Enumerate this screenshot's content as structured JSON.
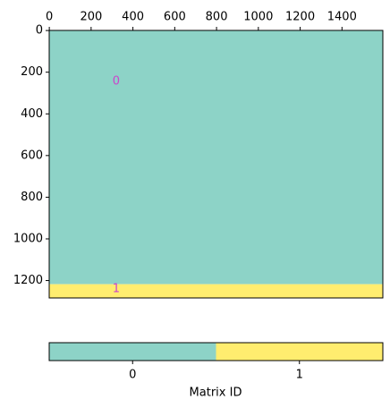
{
  "chart_data": {
    "type": "matrix",
    "xlim": [
      -0.5,
      1595.5
    ],
    "ylim": [
      1283.5,
      -0.5
    ],
    "xticks": [
      0,
      200,
      400,
      600,
      800,
      1000,
      1200,
      1400
    ],
    "yticks": [
      0,
      200,
      400,
      600,
      800,
      1000,
      1200
    ],
    "bands": [
      {
        "y0": -0.5,
        "y1": 1217.5,
        "value": 0
      },
      {
        "y0": 1217.5,
        "y1": 1283.5,
        "value": 1
      }
    ],
    "colors": [
      "#8dd3c7",
      "#ffed6f"
    ],
    "annotations": [
      {
        "text": "0",
        "x": 320,
        "y": 245
      },
      {
        "text": "1",
        "x": 320,
        "y": 1240
      }
    ],
    "annotation_color": "#cc44cc",
    "colorbar": {
      "label": "Matrix ID",
      "xlim": [
        -0.5,
        1.5
      ],
      "xticks": [
        0,
        1
      ],
      "values": [
        0,
        1
      ]
    }
  }
}
